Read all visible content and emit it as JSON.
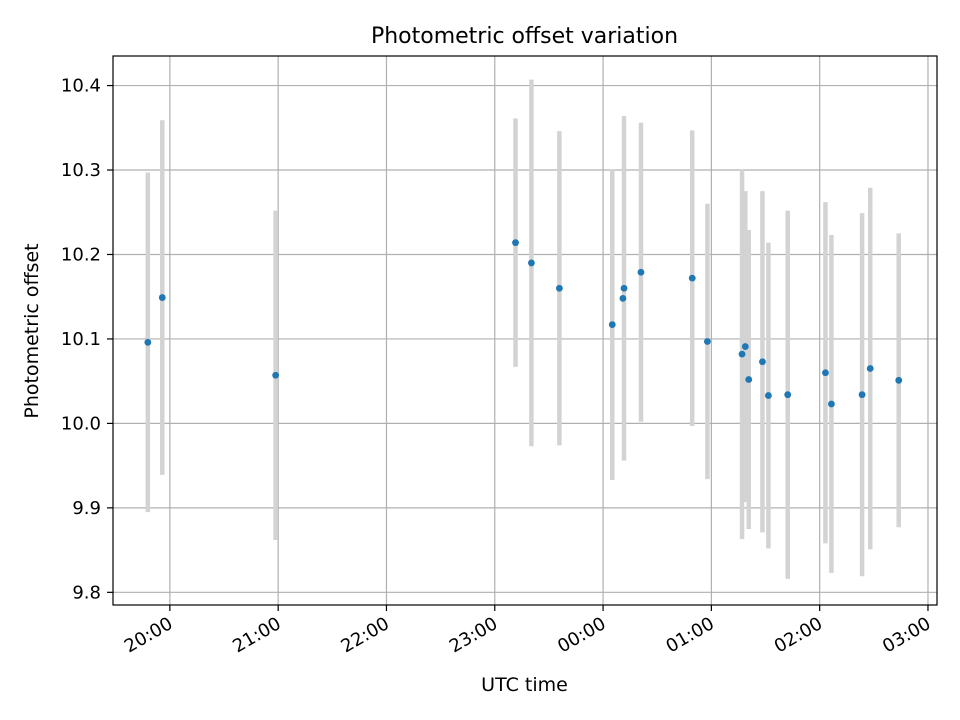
{
  "chart_data": {
    "type": "scatter",
    "title": "Photometric offset variation",
    "xlabel": "UTC time",
    "ylabel": "Photometric offset",
    "grid": true,
    "x_domain_minutes": [
      -31.5,
      425.0
    ],
    "ylim": [
      9.785,
      10.435
    ],
    "x_ticks": [
      {
        "minutes": 0,
        "label": "20:00"
      },
      {
        "minutes": 60,
        "label": "21:00"
      },
      {
        "minutes": 120,
        "label": "22:00"
      },
      {
        "minutes": 180,
        "label": "23:00"
      },
      {
        "minutes": 240,
        "label": "00:00"
      },
      {
        "minutes": 300,
        "label": "01:00"
      },
      {
        "minutes": 360,
        "label": "02:00"
      },
      {
        "minutes": 420,
        "label": "03:00"
      }
    ],
    "y_ticks": [
      9.8,
      9.9,
      10.0,
      10.1,
      10.2,
      10.3,
      10.4
    ],
    "y_tick_labels": [
      "9.8",
      "9.9",
      "10.0",
      "10.1",
      "10.2",
      "10.3",
      "10.4"
    ],
    "series": [
      {
        "marker_color": "#1f77b4",
        "errorbar_color": "#d3d3d3",
        "points": [
          {
            "t": -12.2,
            "y": 10.096,
            "err": 0.201
          },
          {
            "t": -4.2,
            "y": 10.149,
            "err": 0.21
          },
          {
            "t": 58.6,
            "y": 10.057,
            "err": 0.195
          },
          {
            "t": 191.5,
            "y": 10.214,
            "err": 0.147
          },
          {
            "t": 200.3,
            "y": 10.19,
            "err": 0.217
          },
          {
            "t": 215.8,
            "y": 10.16,
            "err": 0.186
          },
          {
            "t": 245.1,
            "y": 10.117,
            "err": 0.184
          },
          {
            "t": 251.0,
            "y": 10.148,
            "err": 0.0
          },
          {
            "t": 251.6,
            "y": 10.16,
            "err": 0.204
          },
          {
            "t": 261.0,
            "y": 10.179,
            "err": 0.177
          },
          {
            "t": 289.4,
            "y": 10.172,
            "err": 0.175
          },
          {
            "t": 297.8,
            "y": 10.097,
            "err": 0.163
          },
          {
            "t": 317.0,
            "y": 10.082,
            "err": 0.219
          },
          {
            "t": 318.8,
            "y": 10.091,
            "err": 0.184
          },
          {
            "t": 320.7,
            "y": 10.052,
            "err": 0.177
          },
          {
            "t": 328.3,
            "y": 10.073,
            "err": 0.202
          },
          {
            "t": 331.6,
            "y": 10.033,
            "err": 0.181
          },
          {
            "t": 342.3,
            "y": 10.034,
            "err": 0.218
          },
          {
            "t": 363.2,
            "y": 10.06,
            "err": 0.202
          },
          {
            "t": 366.5,
            "y": 10.023,
            "err": 0.2
          },
          {
            "t": 383.5,
            "y": 10.034,
            "err": 0.215
          },
          {
            "t": 388.0,
            "y": 10.065,
            "err": 0.214
          },
          {
            "t": 403.8,
            "y": 10.051,
            "err": 0.174
          }
        ]
      }
    ]
  }
}
